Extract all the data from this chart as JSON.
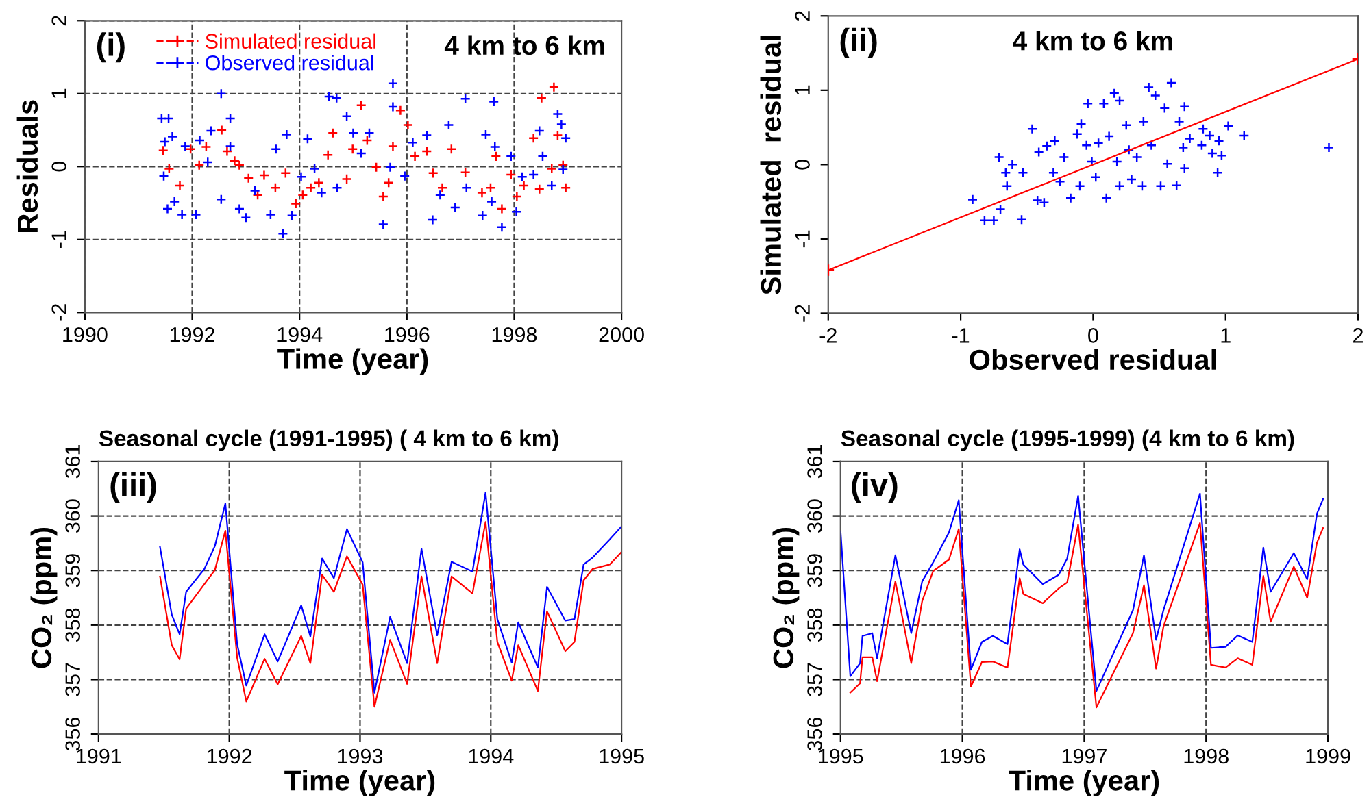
{
  "chart_data": [
    {
      "type": "scatter",
      "xlabel": "Time (year)",
      "ylabel": "Residuals",
      "annotations": [
        "(i)",
        "4 km to 6 km"
      ],
      "xlim": [
        1990,
        2000
      ],
      "xticks": [
        1990,
        1992,
        1994,
        1996,
        1998,
        2000
      ],
      "ylim": [
        -2,
        2
      ],
      "yticks": [
        -2,
        -1,
        0,
        1,
        2
      ],
      "grid": true,
      "legend": "top left",
      "marker": "cross",
      "series": [
        {
          "name": "Simulated residual",
          "color": "#ff0000",
          "x": [
            1991.46,
            1991.57,
            1991.77,
            1991.97,
            1992.13,
            1992.26,
            1992.55,
            1992.65,
            1992.79,
            1992.88,
            1993.05,
            1993.22,
            1993.34,
            1993.55,
            1993.74,
            1993.93,
            1994.06,
            1994.21,
            1994.36,
            1994.53,
            1994.62,
            1994.88,
            1994.99,
            1995.15,
            1995.26,
            1995.43,
            1995.56,
            1995.66,
            1995.74,
            1995.88,
            1996.02,
            1996.15,
            1996.37,
            1996.49,
            1996.66,
            1996.83,
            1997.09,
            1997.4,
            1997.56,
            1997.66,
            1997.77,
            1997.94,
            1998.05,
            1998.18,
            1998.36,
            1998.47,
            1998.51,
            1998.7,
            1998.74,
            1998.81,
            1998.96,
            1998.91
          ],
          "values": [
            0.22,
            -0.03,
            -0.26,
            0.24,
            0.02,
            0.27,
            0.5,
            0.21,
            0.08,
            0.02,
            -0.16,
            -0.39,
            -0.12,
            -0.29,
            -0.09,
            -0.51,
            -0.39,
            -0.29,
            -0.22,
            0.16,
            0.46,
            -0.17,
            0.24,
            0.84,
            0.36,
            -0.01,
            -0.41,
            -0.22,
            0.28,
            0.77,
            0.57,
            0.14,
            0.21,
            -0.09,
            -0.29,
            0.24,
            -0.08,
            -0.36,
            -0.29,
            0.14,
            -0.58,
            -0.11,
            -0.41,
            -0.26,
            0.39,
            -0.31,
            0.94,
            -0.03,
            1.09,
            0.43,
            -0.29,
            0.02
          ]
        },
        {
          "name": "Observed residual",
          "color": "#0000ff",
          "x": [
            1991.43,
            1991.56,
            1991.49,
            1991.47,
            1991.54,
            1991.67,
            1991.63,
            1991.81,
            1991.87,
            1992.07,
            1992.14,
            1992.29,
            1992.35,
            1992.54,
            1992.54,
            1992.71,
            1992.71,
            1992.88,
            1993.0,
            1993.17,
            1993.46,
            1993.56,
            1993.76,
            1993.69,
            1993.86,
            1994.03,
            1994.15,
            1994.28,
            1994.41,
            1994.55,
            1994.69,
            1994.7,
            1994.88,
            1995.0,
            1995.15,
            1995.3,
            1995.56,
            1995.69,
            1995.74,
            1995.74,
            1995.96,
            1996.11,
            1996.37,
            1996.48,
            1996.62,
            1996.78,
            1996.9,
            1997.09,
            1997.11,
            1997.41,
            1997.47,
            1997.58,
            1997.62,
            1997.64,
            1997.77,
            1997.94,
            1998.04,
            1998.15,
            1998.36,
            1998.47,
            1998.53,
            1998.7,
            1998.81,
            1998.88,
            1998.96,
            1998.91
          ],
          "values": [
            0.66,
            0.66,
            0.34,
            -0.13,
            -0.58,
            -0.48,
            0.41,
            -0.66,
            0.28,
            -0.66,
            0.36,
            0.06,
            0.49,
            1.0,
            -0.45,
            0.66,
            0.28,
            -0.58,
            -0.7,
            -0.33,
            -0.66,
            0.24,
            0.44,
            -0.92,
            -0.67,
            -0.14,
            0.38,
            -0.03,
            -0.36,
            0.96,
            0.94,
            -0.29,
            0.69,
            0.46,
            0.18,
            0.46,
            -0.79,
            -0.01,
            1.14,
            0.82,
            -0.13,
            0.33,
            0.43,
            -0.73,
            -0.39,
            0.57,
            -0.56,
            0.93,
            -0.29,
            -0.67,
            0.44,
            -0.48,
            0.89,
            0.27,
            -0.83,
            0.14,
            -0.62,
            -0.14,
            -0.11,
            0.49,
            0.14,
            -0.26,
            0.72,
            0.58,
            0.39,
            -0.04
          ]
        }
      ]
    },
    {
      "type": "scatter",
      "xlabel": "Observed residual",
      "ylabel": "Simulated  residual",
      "annotations": [
        "(ii)",
        "4 km to 6 km"
      ],
      "xlim": [
        -2,
        2
      ],
      "xticks": [
        -2,
        -1,
        0,
        1,
        2
      ],
      "ylim": [
        -2,
        2
      ],
      "yticks": [
        -2,
        -1,
        0,
        1,
        2
      ],
      "marker": "cross",
      "series": [
        {
          "color": "#0000ff",
          "x": [
            -0.91,
            -0.82,
            -0.75,
            -0.7,
            -0.71,
            -0.66,
            -0.61,
            -0.65,
            -0.54,
            -0.53,
            -0.46,
            -0.42,
            -0.41,
            -0.37,
            -0.35,
            -0.29,
            -0.3,
            -0.25,
            -0.22,
            -0.17,
            -0.12,
            -0.1,
            -0.09,
            -0.04,
            -0.05,
            -0.01,
            0.02,
            0.04,
            0.08,
            0.1,
            0.12,
            0.16,
            0.18,
            0.2,
            0.2,
            0.25,
            0.27,
            0.29,
            0.33,
            0.38,
            0.37,
            0.42,
            0.44,
            0.47,
            0.51,
            0.54,
            0.56,
            0.59,
            0.63,
            0.65,
            0.68,
            0.69,
            0.69,
            0.73,
            0.82,
            0.83,
            0.88,
            0.9,
            0.94,
            0.95,
            0.97,
            1.02,
            1.14,
            1.78
          ],
          "values": [
            -0.47,
            -0.75,
            -0.75,
            -0.6,
            0.1,
            -0.11,
            0.0,
            -0.29,
            -0.74,
            -0.11,
            0.48,
            -0.48,
            0.17,
            -0.51,
            0.25,
            0.32,
            -0.11,
            -0.23,
            0.1,
            -0.45,
            0.41,
            -0.29,
            0.55,
            0.82,
            0.26,
            0.04,
            -0.17,
            0.29,
            0.82,
            -0.45,
            0.38,
            0.96,
            0.04,
            0.86,
            -0.29,
            0.53,
            0.2,
            -0.2,
            0.1,
            0.58,
            -0.29,
            1.04,
            0.26,
            0.93,
            -0.29,
            0.76,
            0.01,
            1.1,
            -0.28,
            0.58,
            0.23,
            0.78,
            -0.05,
            0.35,
            0.26,
            0.48,
            0.39,
            0.15,
            -0.11,
            0.32,
            0.12,
            0.52,
            0.39,
            0.23
          ]
        },
        {
          "type": "line",
          "color": "#ff0000",
          "x": [
            -2,
            2
          ],
          "values": [
            -1.42,
            1.42
          ]
        }
      ]
    },
    {
      "type": "line",
      "title": "Seasonal cycle (1991-1995) ( 4 km to 6 km)",
      "xlabel": "Time (year)",
      "ylabel": "CO₂ (ppm)",
      "annotations": [
        "(iii)"
      ],
      "xlim": [
        1991,
        1995
      ],
      "xticks": [
        1991,
        1992,
        1993,
        1994,
        1995
      ],
      "ylim": [
        356,
        361
      ],
      "yticks": [
        356,
        357,
        358,
        359,
        360,
        361
      ],
      "grid": true,
      "marker": "none",
      "line_style": "solid",
      "series": [
        {
          "color": "#ff0000",
          "x": [
            1991.47,
            1991.56,
            1991.62,
            1991.67,
            1991.89,
            1991.97,
            1992.06,
            1992.13,
            1992.27,
            1992.37,
            1992.55,
            1992.62,
            1992.71,
            1992.8,
            1992.9,
            1993.02,
            1993.11,
            1993.23,
            1993.36,
            1993.47,
            1993.59,
            1993.7,
            1993.86,
            1993.96,
            1994.05,
            1994.16,
            1994.21,
            1994.36,
            1994.43,
            1994.57,
            1994.64,
            1994.71,
            1994.78,
            1994.91,
            1995.0
          ],
          "values": [
            358.89,
            357.63,
            357.37,
            358.3,
            359.01,
            359.73,
            357.4,
            356.6,
            357.38,
            356.91,
            357.8,
            357.3,
            358.92,
            358.61,
            359.26,
            358.74,
            356.5,
            357.73,
            356.92,
            358.89,
            357.3,
            358.89,
            358.58,
            359.89,
            357.69,
            356.98,
            357.63,
            356.79,
            358.25,
            357.52,
            357.69,
            358.82,
            359.03,
            359.11,
            359.34
          ]
        },
        {
          "color": "#0000ff",
          "x": [
            1991.47,
            1991.56,
            1991.62,
            1991.67,
            1991.81,
            1991.89,
            1991.97,
            1992.06,
            1992.13,
            1992.27,
            1992.37,
            1992.55,
            1992.62,
            1992.71,
            1992.8,
            1992.9,
            1993.02,
            1993.11,
            1993.23,
            1993.36,
            1993.47,
            1993.59,
            1993.7,
            1993.86,
            1993.96,
            1994.05,
            1994.16,
            1994.21,
            1994.36,
            1994.43,
            1994.57,
            1994.64,
            1994.71,
            1994.78,
            1994.91,
            1995.0
          ],
          "values": [
            359.43,
            358.19,
            357.83,
            358.61,
            359.03,
            359.45,
            360.23,
            357.65,
            356.89,
            357.83,
            357.33,
            358.36,
            357.79,
            359.22,
            358.86,
            359.76,
            359.15,
            356.76,
            358.15,
            357.3,
            359.4,
            357.81,
            359.16,
            358.98,
            360.43,
            358.11,
            357.31,
            358.05,
            357.22,
            358.7,
            358.08,
            358.11,
            359.11,
            359.24,
            359.57,
            359.81
          ]
        }
      ]
    },
    {
      "type": "line",
      "title": "Seasonal cycle (1995-1999) (4 km to 6 km)",
      "xlabel": "Time (year)",
      "ylabel": "CO₂ (ppm)",
      "annotations": [
        "(iv)"
      ],
      "xlim": [
        1995,
        1999
      ],
      "xticks": [
        1995,
        1996,
        1997,
        1998,
        1999
      ],
      "ylim": [
        356,
        361
      ],
      "yticks": [
        356,
        357,
        358,
        359,
        360,
        361
      ],
      "grid": true,
      "marker": "none",
      "line_style": "solid",
      "series": [
        {
          "color": "#ff0000",
          "x": [
            1995.08,
            1995.16,
            1995.18,
            1995.26,
            1995.3,
            1995.45,
            1995.58,
            1995.67,
            1995.76,
            1995.89,
            1995.97,
            1996.07,
            1996.16,
            1996.25,
            1996.37,
            1996.47,
            1996.5,
            1996.66,
            1996.79,
            1996.86,
            1996.95,
            1997.1,
            1997.4,
            1997.49,
            1997.59,
            1997.65,
            1997.95,
            1998.04,
            1998.16,
            1998.26,
            1998.38,
            1998.47,
            1998.53,
            1998.72,
            1998.83,
            1998.91,
            1998.96
          ],
          "values": [
            356.76,
            356.93,
            357.41,
            357.41,
            356.97,
            358.8,
            357.3,
            358.44,
            358.99,
            359.2,
            359.76,
            356.87,
            357.32,
            357.33,
            357.22,
            358.86,
            358.57,
            358.4,
            358.67,
            358.78,
            359.84,
            356.49,
            357.85,
            358.73,
            357.2,
            357.97,
            359.87,
            357.27,
            357.22,
            357.39,
            357.27,
            358.9,
            358.06,
            359.07,
            358.5,
            359.51,
            359.78
          ]
        },
        {
          "color": "#0000ff",
          "x": [
            1995.0,
            1995.08,
            1995.16,
            1995.18,
            1995.26,
            1995.3,
            1995.45,
            1995.58,
            1995.67,
            1995.76,
            1995.89,
            1995.97,
            1996.07,
            1996.16,
            1996.25,
            1996.37,
            1996.47,
            1996.5,
            1996.66,
            1996.79,
            1996.86,
            1996.95,
            1997.1,
            1997.4,
            1997.49,
            1997.59,
            1997.65,
            1997.95,
            1998.04,
            1998.16,
            1998.26,
            1998.38,
            1998.47,
            1998.53,
            1998.72,
            1998.83,
            1998.91,
            1998.96
          ],
          "values": [
            359.72,
            357.06,
            357.3,
            357.8,
            357.85,
            357.39,
            359.28,
            357.85,
            358.8,
            359.15,
            359.7,
            360.29,
            357.18,
            357.69,
            357.8,
            357.65,
            359.39,
            359.11,
            358.75,
            358.92,
            359.22,
            360.37,
            356.79,
            358.27,
            359.28,
            357.73,
            358.27,
            360.41,
            357.58,
            357.6,
            357.81,
            357.69,
            359.42,
            358.61,
            359.32,
            358.84,
            360.04,
            360.31
          ]
        }
      ]
    }
  ]
}
